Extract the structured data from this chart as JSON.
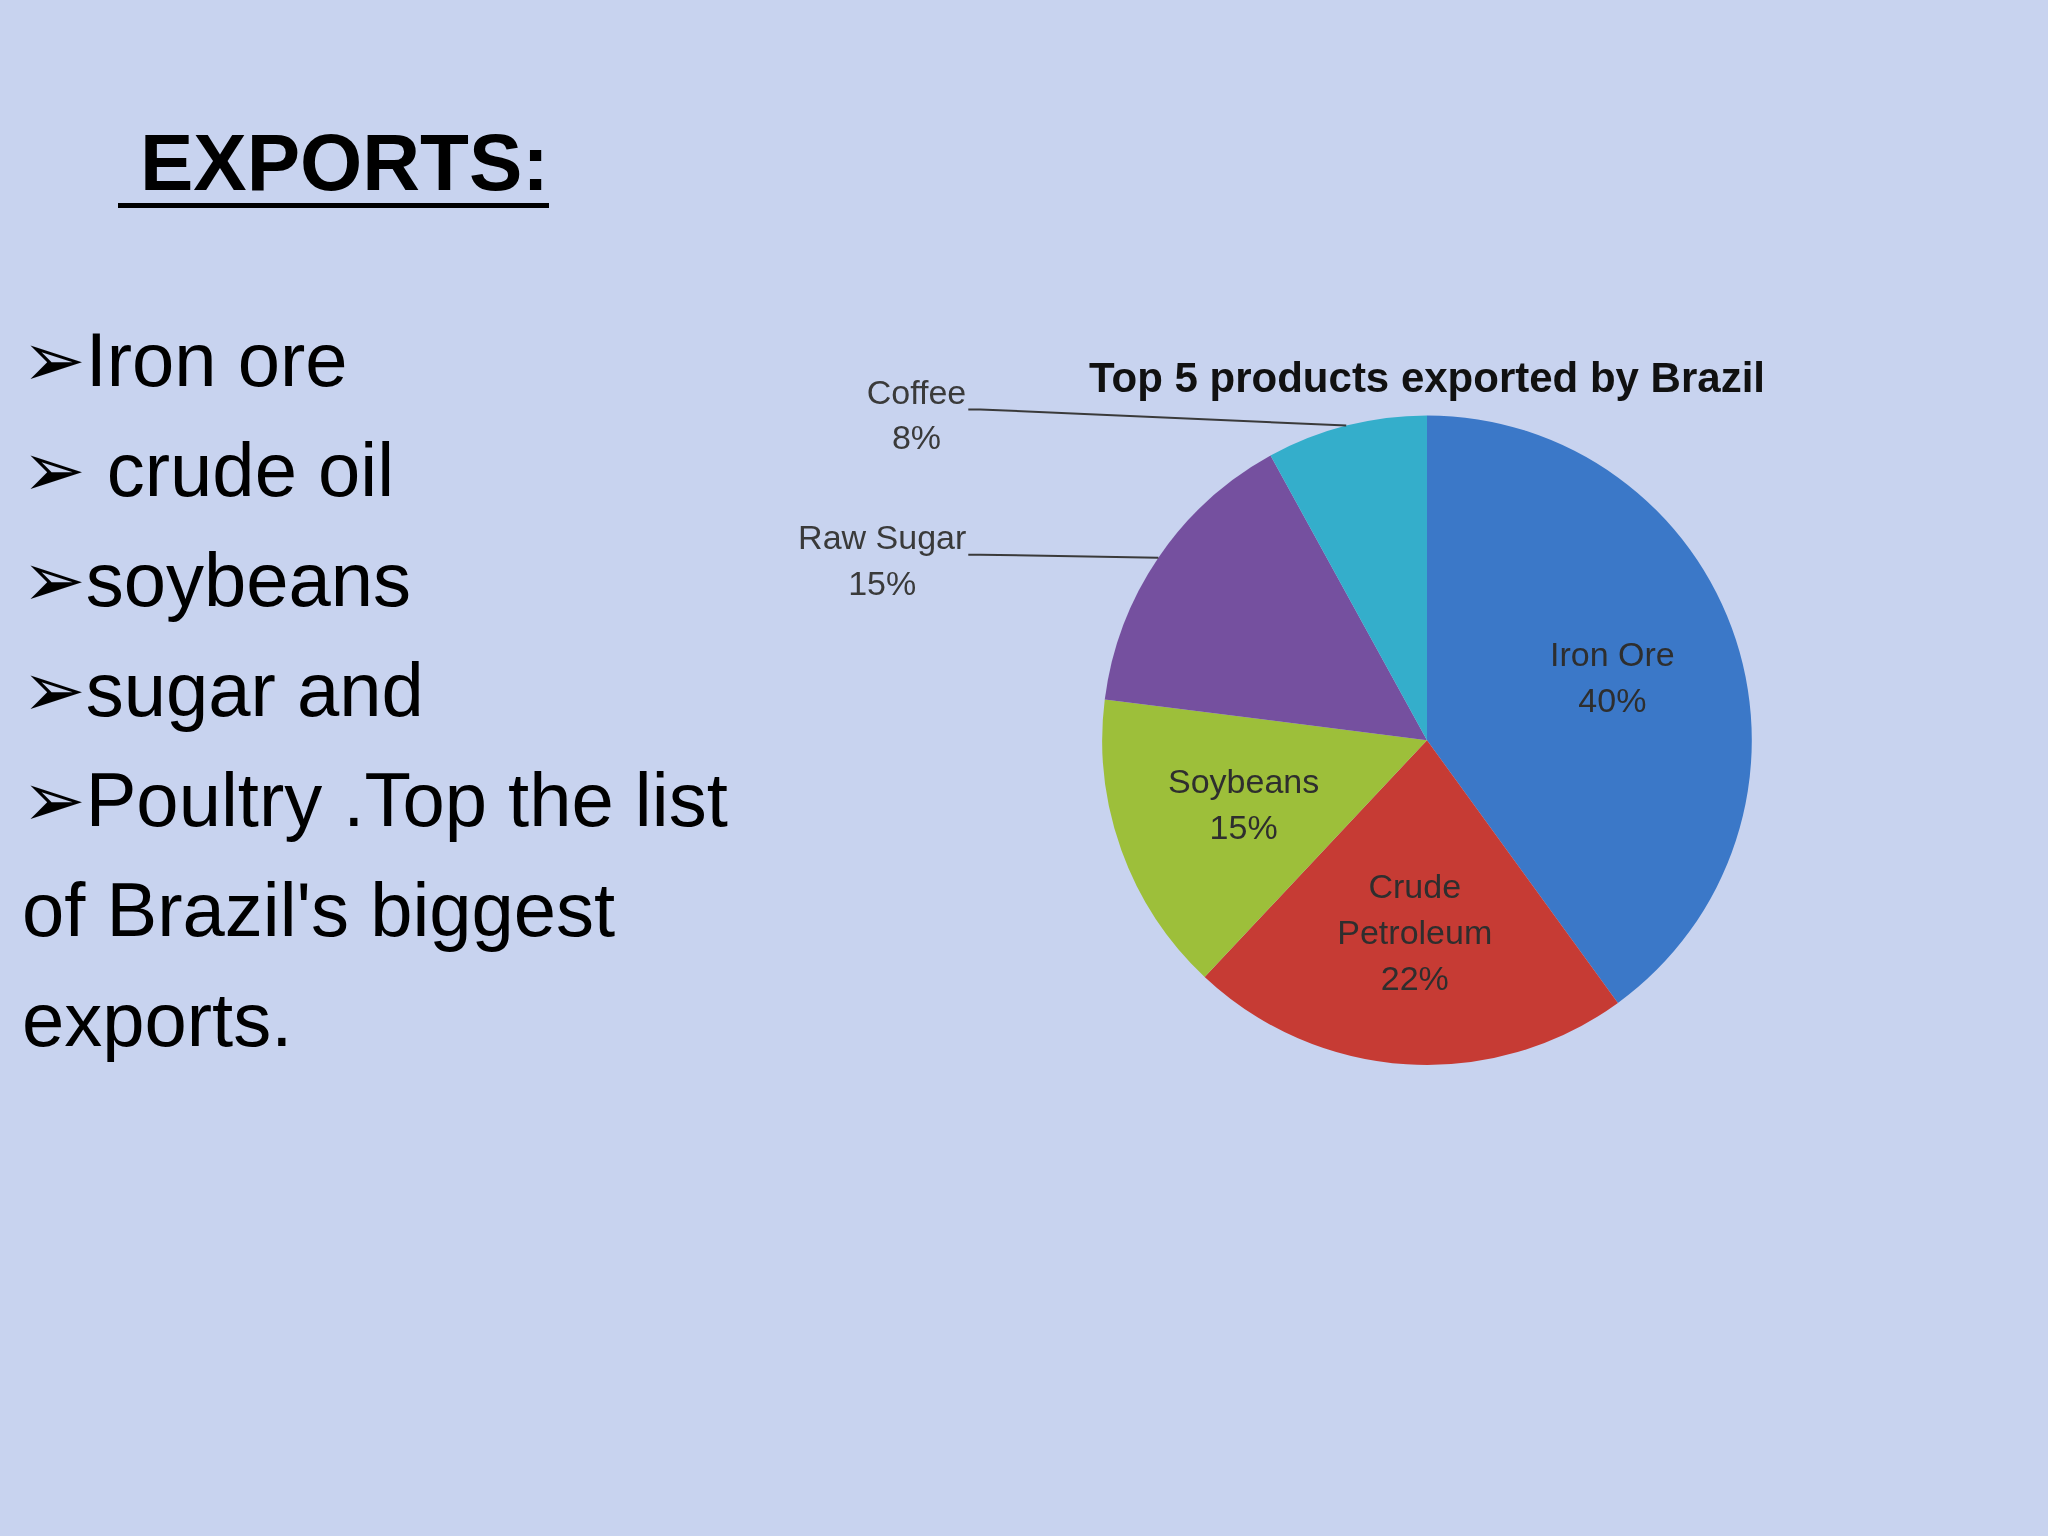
{
  "chart_data": {
    "type": "pie",
    "title": "Top 5 products exported by Brazil",
    "categories": [
      "Iron Ore",
      "Crude Petroleum",
      "Soybeans",
      "Raw Sugar",
      "Coffee"
    ],
    "values": [
      40,
      22,
      15,
      15,
      8
    ],
    "value_labels": [
      "40%",
      "22%",
      "15%",
      "15%",
      "8%"
    ],
    "colors": [
      "#3b78c8",
      "#c63b34",
      "#9dbf3a",
      "#75509f",
      "#34aecb"
    ],
    "legend": false,
    "annotations": [
      "EXPORTS:",
      "➢Iron ore",
      "➢ crude oil",
      "➢soybeans",
      "➢sugar and",
      "➢Poultry .Top the list of Brazil's biggest exports."
    ]
  }
}
